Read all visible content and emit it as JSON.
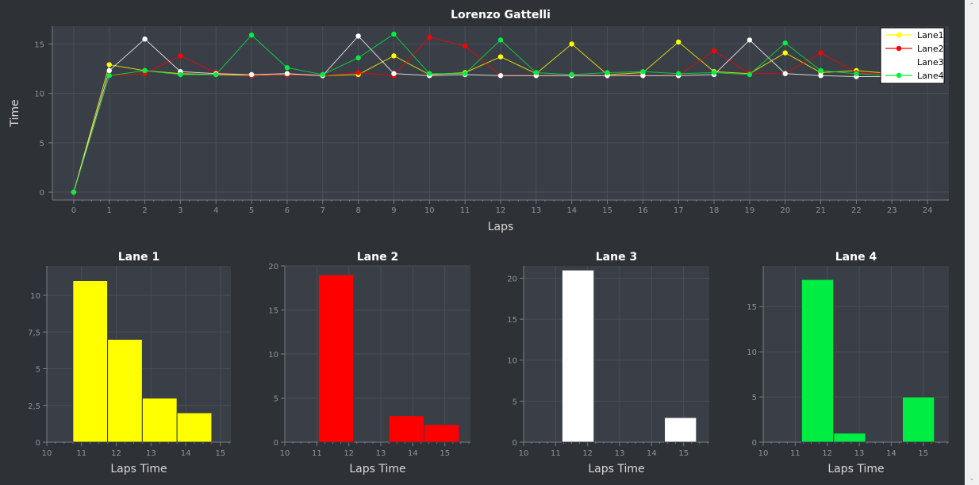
{
  "colors": {
    "background": "#2e3136",
    "plot_background": "#3a3e46",
    "grid": "#494e57",
    "axis": "#777c85",
    "lane1": "#ffff00",
    "lane2": "#ff0000",
    "lane3": "#ffffff",
    "lane4": "#00ee44"
  },
  "chart_data": [
    {
      "type": "line",
      "title": "Lorenzo Gattelli",
      "xlabel": "Laps",
      "ylabel": "Time",
      "x_ticks": [
        0,
        1,
        2,
        3,
        4,
        5,
        6,
        7,
        8,
        9,
        10,
        11,
        12,
        13,
        14,
        15,
        16,
        17,
        18,
        19,
        20,
        21,
        22,
        23,
        24
      ],
      "y_ticks": [
        0,
        5,
        10,
        15
      ],
      "xlim": [
        -0.6,
        24.6
      ],
      "ylim": [
        -0.8,
        16.8
      ],
      "grid": true,
      "legend_position": "top-right",
      "x": [
        0,
        1,
        2,
        3,
        4,
        5,
        6,
        7,
        8,
        9,
        10,
        11,
        12,
        13,
        14,
        15,
        16,
        17,
        18,
        19,
        20,
        21,
        22,
        23
      ],
      "series": [
        {
          "name": "Lane1",
          "color": "#ffff00",
          "values": [
            0,
            12.9,
            12.3,
            12.0,
            11.9,
            11.8,
            11.9,
            11.8,
            11.9,
            13.8,
            11.9,
            12.1,
            13.7,
            12.0,
            15.0,
            11.9,
            12.1,
            15.2,
            12.2,
            12.0,
            14.1,
            12.1,
            12.3,
            12.0
          ]
        },
        {
          "name": "Lane2",
          "color": "#ff0000",
          "values": [
            0,
            11.8,
            12.0,
            13.8,
            12.1,
            11.8,
            11.9,
            11.8,
            12.1,
            11.8,
            15.7,
            14.8,
            11.8,
            11.8,
            11.8,
            11.8,
            11.8,
            11.8,
            14.3,
            12.0,
            12.0,
            14.1,
            12.1,
            11.9
          ]
        },
        {
          "name": "Lane3",
          "color": "#ffffff",
          "values": [
            0,
            12.3,
            15.5,
            12.2,
            12.0,
            11.9,
            12.0,
            11.8,
            15.8,
            12.0,
            11.8,
            11.9,
            11.8,
            11.8,
            11.8,
            11.8,
            11.8,
            11.8,
            11.9,
            15.4,
            12.0,
            11.8,
            11.7,
            11.7
          ]
        },
        {
          "name": "Lane4",
          "color": "#00ee44",
          "values": [
            0,
            11.8,
            12.3,
            11.9,
            11.9,
            15.9,
            12.6,
            11.9,
            13.6,
            16.0,
            12.0,
            12.0,
            15.4,
            12.1,
            11.9,
            12.1,
            12.2,
            12.0,
            12.1,
            11.9,
            15.1,
            12.3,
            12.0,
            11.8
          ]
        }
      ]
    },
    {
      "type": "bar",
      "title": "Lane 1",
      "xlabel": "Laps Time",
      "color": "#ffff00",
      "xlim": [
        10,
        15.3
      ],
      "ylim": [
        0,
        12
      ],
      "grid": true,
      "x_ticks": [
        10,
        11,
        12,
        13,
        14,
        15
      ],
      "y_ticks": [
        0,
        2.5,
        5,
        7.5,
        10
      ],
      "y_tick_labels": [
        "0",
        "2,5",
        "5",
        "7,5",
        "10"
      ],
      "bins": [
        [
          10.75,
          11.75
        ],
        [
          11.75,
          12.75
        ],
        [
          12.75,
          13.75
        ],
        [
          13.75,
          14.75
        ]
      ],
      "values": [
        11,
        7,
        3,
        2
      ]
    },
    {
      "type": "bar",
      "title": "Lane 2",
      "xlabel": "Laps Time",
      "color": "#ff0000",
      "xlim": [
        10,
        15.8
      ],
      "ylim": [
        0,
        20
      ],
      "grid": true,
      "x_ticks": [
        10,
        11,
        12,
        13,
        14,
        15
      ],
      "y_ticks": [
        0,
        5,
        10,
        15,
        20
      ],
      "y_tick_labels": [
        "0",
        "5",
        "10",
        "15",
        "20"
      ],
      "bins": [
        [
          11.05,
          12.15
        ],
        [
          13.25,
          14.35
        ],
        [
          14.35,
          15.45
        ]
      ],
      "values": [
        19,
        3,
        2
      ]
    },
    {
      "type": "bar",
      "title": "Lane 3",
      "xlabel": "Laps Time",
      "color": "#ffffff",
      "xlim": [
        10,
        15.8
      ],
      "ylim": [
        0,
        21.5
      ],
      "grid": true,
      "x_ticks": [
        10,
        11,
        12,
        13,
        14,
        15
      ],
      "y_ticks": [
        0,
        5,
        10,
        15,
        20
      ],
      "y_tick_labels": [
        "0",
        "5",
        "10",
        "15",
        "20"
      ],
      "bins": [
        [
          11.2,
          12.2
        ],
        [
          14.4,
          15.4
        ]
      ],
      "values": [
        21,
        3
      ]
    },
    {
      "type": "bar",
      "title": "Lane 4",
      "xlabel": "Laps Time",
      "color": "#00ee44",
      "xlim": [
        10,
        15.8
      ],
      "ylim": [
        0,
        19.5
      ],
      "grid": true,
      "x_ticks": [
        10,
        11,
        12,
        13,
        14,
        15
      ],
      "y_ticks": [
        0,
        5,
        10,
        15
      ],
      "y_tick_labels": [
        "0",
        "5",
        "10",
        "15"
      ],
      "bins": [
        [
          11.2,
          12.2
        ],
        [
          12.2,
          13.2
        ],
        [
          14.35,
          15.35
        ]
      ],
      "values": [
        18,
        1,
        5
      ]
    }
  ]
}
